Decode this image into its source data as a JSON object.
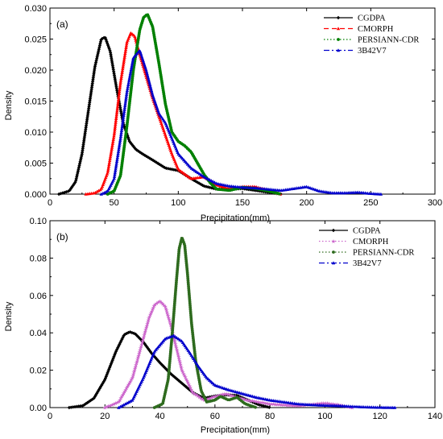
{
  "chart_data": [
    {
      "type": "line",
      "panel_label": "(a)",
      "xlabel": "Precipitation(mm)",
      "ylabel": "Density",
      "xlim": [
        0,
        300
      ],
      "ylim": [
        0,
        0.03
      ],
      "xticks": [
        0,
        50,
        100,
        150,
        200,
        250,
        300
      ],
      "xtick_labels": [
        "0",
        "50",
        "100",
        "150",
        "200",
        "250",
        "300"
      ],
      "yticks": [
        0.0,
        0.005,
        0.01,
        0.015,
        0.02,
        0.025,
        0.03
      ],
      "ytick_labels": [
        "0.000",
        "0.005",
        "0.010",
        "0.015",
        "0.020",
        "0.025",
        "0.030"
      ],
      "legend_position": "top-right",
      "series": [
        {
          "name": "CGDPA",
          "color": "#000000",
          "dash": "solid",
          "marker": "diamond",
          "x": [
            7,
            15,
            20,
            25,
            30,
            35,
            40,
            43,
            47,
            52,
            57,
            62,
            67,
            72,
            80,
            90,
            100,
            110,
            120,
            130,
            140,
            150,
            160,
            170,
            180
          ],
          "y": [
            0.0,
            0.0005,
            0.002,
            0.0065,
            0.0135,
            0.0205,
            0.025,
            0.0253,
            0.023,
            0.017,
            0.0115,
            0.0085,
            0.0072,
            0.0065,
            0.0055,
            0.0042,
            0.0038,
            0.0025,
            0.0013,
            0.0008,
            0.0008,
            0.0009,
            0.0006,
            0.0003,
            0.0
          ]
        },
        {
          "name": "CMORPH",
          "color": "#ff0000",
          "dash": "dash",
          "marker": "triangle-up",
          "x": [
            28,
            35,
            40,
            45,
            50,
            55,
            60,
            63,
            66,
            70,
            75,
            80,
            85,
            90,
            95,
            100,
            110,
            120,
            130,
            140,
            150,
            160,
            170,
            180
          ],
          "y": [
            0.0,
            0.0002,
            0.0008,
            0.0035,
            0.0095,
            0.018,
            0.0245,
            0.026,
            0.0255,
            0.0225,
            0.019,
            0.0155,
            0.0125,
            0.0095,
            0.0065,
            0.004,
            0.0025,
            0.0028,
            0.0015,
            0.0008,
            0.0012,
            0.0012,
            0.0006,
            0.0
          ]
        },
        {
          "name": "PERSIANN-CDR",
          "color": "#008000",
          "dash": "dot",
          "marker": "circle",
          "x": [
            45,
            50,
            55,
            60,
            65,
            70,
            73,
            76,
            80,
            85,
            90,
            95,
            100,
            105,
            110,
            115,
            120,
            125,
            130,
            140,
            150,
            160,
            170,
            180
          ],
          "y": [
            0.0,
            0.0005,
            0.003,
            0.011,
            0.02,
            0.0265,
            0.0285,
            0.029,
            0.027,
            0.021,
            0.0145,
            0.01,
            0.0085,
            0.0078,
            0.0068,
            0.005,
            0.0032,
            0.0018,
            0.0008,
            0.0006,
            0.0011,
            0.0009,
            0.0005,
            0.0
          ]
        },
        {
          "name": "3B42V7",
          "color": "#0000cc",
          "dash": "dashdot",
          "marker": "triangle-up-filled",
          "x": [
            40,
            45,
            50,
            55,
            60,
            65,
            70,
            75,
            80,
            85,
            90,
            95,
            100,
            110,
            120,
            130,
            140,
            150,
            160,
            170,
            180,
            190,
            200,
            210,
            220,
            230,
            240,
            250,
            258
          ],
          "y": [
            0.0,
            0.0005,
            0.0025,
            0.009,
            0.0165,
            0.022,
            0.0232,
            0.02,
            0.016,
            0.013,
            0.0115,
            0.009,
            0.0065,
            0.0042,
            0.0028,
            0.0017,
            0.0013,
            0.0011,
            0.001,
            0.0008,
            0.0006,
            0.0009,
            0.0012,
            0.0005,
            0.0002,
            0.0002,
            0.0003,
            0.0001,
            0.0
          ]
        }
      ]
    },
    {
      "type": "line",
      "panel_label": "(b)",
      "xlabel": "Precipitation(mm)",
      "ylabel": "Density",
      "xlim": [
        0,
        140
      ],
      "ylim": [
        0,
        0.1
      ],
      "xticks": [
        0,
        20,
        40,
        60,
        80,
        100,
        120,
        140
      ],
      "xtick_labels": [
        "0",
        "20",
        "40",
        "60",
        "80",
        "100",
        "120",
        "140"
      ],
      "yticks": [
        0.0,
        0.02,
        0.04,
        0.06,
        0.08,
        0.1
      ],
      "ytick_labels": [
        "0.00",
        "0.02",
        "0.04",
        "0.06",
        "0.08",
        "0.10"
      ],
      "legend_position": "top-right",
      "series": [
        {
          "name": "CGDPA",
          "color": "#000000",
          "dash": "solid",
          "marker": "diamond",
          "x": [
            7,
            12,
            16,
            20,
            24,
            27,
            29,
            31,
            34,
            37,
            40,
            44,
            48,
            52,
            56,
            60,
            64,
            68,
            72,
            76,
            80
          ],
          "y": [
            0.0,
            0.001,
            0.005,
            0.015,
            0.03,
            0.039,
            0.0405,
            0.0395,
            0.035,
            0.029,
            0.024,
            0.018,
            0.013,
            0.008,
            0.005,
            0.0062,
            0.0068,
            0.0065,
            0.004,
            0.0015,
            0.0
          ]
        },
        {
          "name": "CMORPH",
          "color": "#cc66cc",
          "dash": "dot",
          "marker": "star",
          "x": [
            20,
            25,
            30,
            33,
            36,
            38,
            40,
            42,
            44,
            46,
            48,
            52,
            56,
            60,
            64,
            68,
            72,
            80,
            90,
            100,
            105,
            110
          ],
          "y": [
            0.0,
            0.003,
            0.016,
            0.032,
            0.048,
            0.055,
            0.057,
            0.054,
            0.044,
            0.032,
            0.02,
            0.008,
            0.004,
            0.006,
            0.0075,
            0.0055,
            0.004,
            0.002,
            0.001,
            0.0025,
            0.0015,
            0.0
          ]
        },
        {
          "name": "PERSIANN-CDR",
          "color": "#2e6b1e",
          "dash": "dot",
          "marker": "circle",
          "x": [
            38,
            41,
            43,
            44.5,
            46,
            47,
            48,
            49,
            50,
            51.5,
            53,
            55,
            57,
            60,
            62,
            65,
            68,
            71,
            75
          ],
          "y": [
            0.0,
            0.002,
            0.015,
            0.04,
            0.068,
            0.085,
            0.091,
            0.087,
            0.072,
            0.045,
            0.025,
            0.009,
            0.003,
            0.004,
            0.006,
            0.004,
            0.0055,
            0.002,
            0.0
          ]
        },
        {
          "name": "3B42V7",
          "color": "#0000cc",
          "dash": "dashdot",
          "marker": "triangle-up-filled",
          "x": [
            25,
            30,
            34,
            38,
            42,
            45,
            48,
            51,
            54,
            57,
            60,
            65,
            70,
            75,
            80,
            85,
            90,
            95,
            100,
            105,
            110,
            115,
            120,
            126
          ],
          "y": [
            0.0,
            0.004,
            0.016,
            0.03,
            0.037,
            0.0385,
            0.0355,
            0.029,
            0.022,
            0.016,
            0.012,
            0.0095,
            0.0075,
            0.0055,
            0.004,
            0.003,
            0.002,
            0.0015,
            0.0012,
            0.001,
            0.0006,
            0.0003,
            0.0001,
            0.0
          ]
        }
      ]
    }
  ]
}
